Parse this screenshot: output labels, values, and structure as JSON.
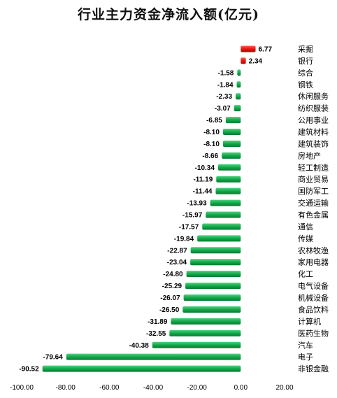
{
  "chart_data": {
    "type": "bar",
    "orientation": "horizontal",
    "title": "行业主力资金净流入额(亿元)",
    "xlabel": "",
    "ylabel": "",
    "xlim": [
      -100,
      20
    ],
    "xticks": [
      "-100.00",
      "-80.00",
      "-60.00",
      "-40.00",
      "-20.00",
      "0.00",
      "20.00"
    ],
    "grid": false,
    "legend": "none",
    "colors": {
      "positive": "#e8140f",
      "negative": "#12a84a"
    },
    "categories": [
      "采掘",
      "银行",
      "综合",
      "钢铁",
      "休闲服务",
      "纺织服装",
      "公用事业",
      "建筑材料",
      "建筑装饰",
      "房地产",
      "轻工制造",
      "商业贸易",
      "国防军工",
      "交通运输",
      "有色金属",
      "通信",
      "传媒",
      "农林牧渔",
      "家用电器",
      "化工",
      "电气设备",
      "机械设备",
      "食品饮料",
      "计算机",
      "医药生物",
      "汽车",
      "电子",
      "非银金融"
    ],
    "values": [
      6.77,
      2.34,
      -1.58,
      -1.84,
      -2.33,
      -3.07,
      -6.85,
      -8.1,
      -8.1,
      -8.66,
      -10.34,
      -11.19,
      -11.44,
      -13.93,
      -15.97,
      -17.57,
      -19.84,
      -22.87,
      -23.04,
      -24.8,
      -25.29,
      -26.07,
      -26.5,
      -31.89,
      -32.55,
      -40.38,
      -79.64,
      -90.52
    ],
    "value_labels": [
      "6.77",
      "2.34",
      "-1.58",
      "-1.84",
      "-2.33",
      "-3.07",
      "-6.85",
      "-8.10",
      "-8.10",
      "-8.66",
      "-10.34",
      "-11.19",
      "-11.44",
      "-13.93",
      "-15.97",
      "-17.57",
      "-19.84",
      "-22.87",
      "-23.04",
      "-24.80",
      "-25.29",
      "-26.07",
      "-26.50",
      "-31.89",
      "-32.55",
      "-40.38",
      "-79.64",
      "-90.52"
    ]
  }
}
